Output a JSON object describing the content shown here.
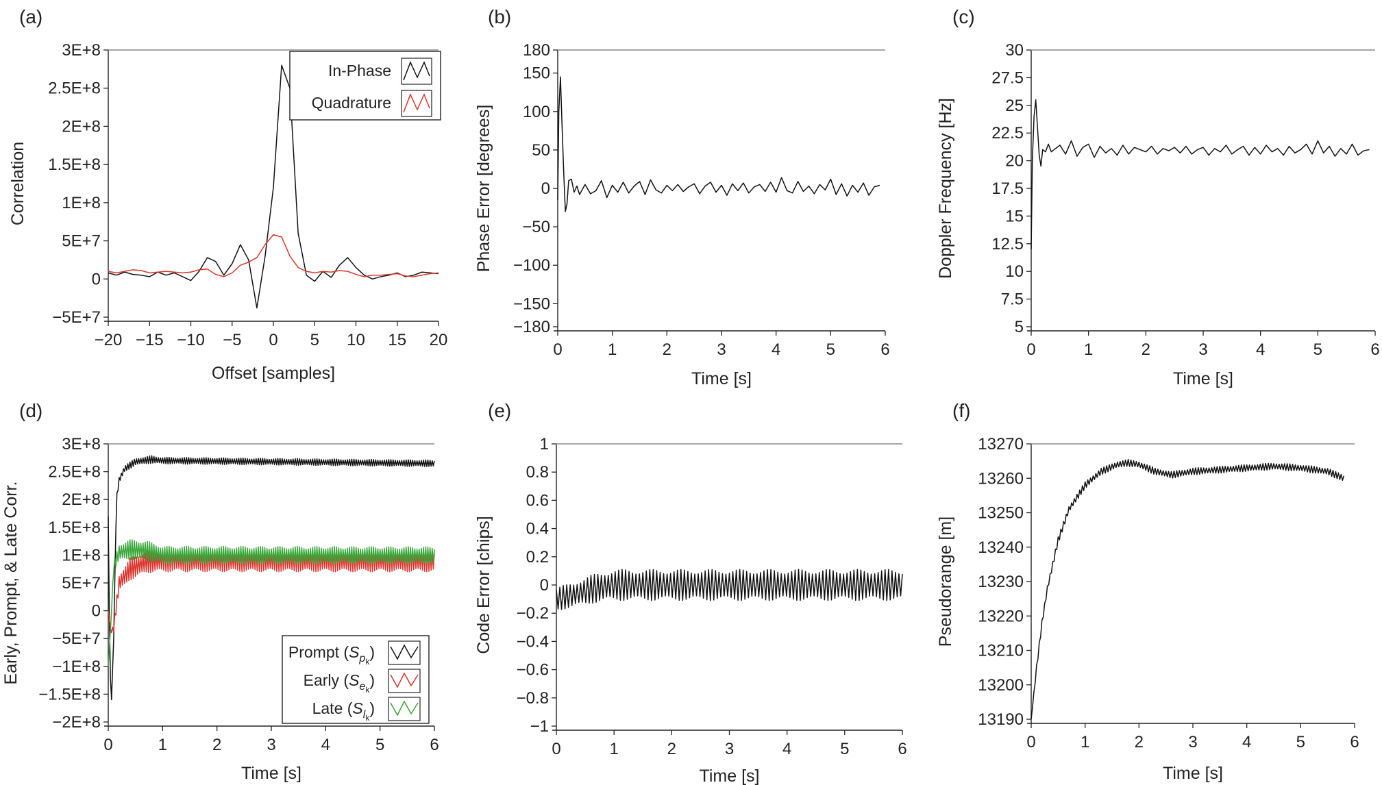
{
  "colors": {
    "black": "#111111",
    "red": "#d9342b",
    "green": "#3aa63a",
    "frame": "#888888"
  },
  "chart_data": [
    {
      "id": "a",
      "panel_label": "(a)",
      "type": "line",
      "xlabel": "Offset [samples]",
      "ylabel": "Correlation",
      "xlim": [
        -20,
        20
      ],
      "ylim": [
        -50000000,
        300000000
      ],
      "xticks": [
        -20,
        -15,
        -10,
        -5,
        0,
        5,
        10,
        15,
        20
      ],
      "xtick_labels": [
        "−20",
        "−15",
        "−10",
        "−5",
        "0",
        "5",
        "10",
        "15",
        "20"
      ],
      "yticks": [
        -50000000,
        0,
        50000000,
        100000000,
        150000000,
        200000000,
        250000000,
        300000000
      ],
      "ytick_labels": [
        "−5E+7",
        "0",
        "5E+7",
        "1E+8",
        "1.5E+8",
        "2E+8",
        "2.5E+8",
        "3E+8"
      ],
      "legend": {
        "position": "top-right",
        "entries": [
          "In-Phase",
          "Quadrature"
        ]
      },
      "series": [
        {
          "name": "In-Phase",
          "color": "#111111",
          "x": [
            -20,
            -19,
            -18,
            -17,
            -16,
            -15,
            -14,
            -13,
            -12,
            -11,
            -10,
            -9,
            -8,
            -7,
            -6,
            -5,
            -4,
            -3,
            -2,
            -1,
            0,
            1,
            2,
            3,
            4,
            5,
            6,
            7,
            8,
            9,
            10,
            11,
            12,
            13,
            14,
            15,
            16,
            17,
            18,
            19,
            20
          ],
          "y": [
            8000000,
            5000000,
            9000000,
            6000000,
            5000000,
            3000000,
            9000000,
            5000000,
            8000000,
            3000000,
            -2000000,
            10000000,
            28000000,
            23000000,
            5000000,
            20000000,
            45000000,
            25000000,
            -38000000,
            30000000,
            120000000,
            280000000,
            250000000,
            60000000,
            5000000,
            -3000000,
            10000000,
            2000000,
            18000000,
            28000000,
            15000000,
            5000000,
            0,
            3000000,
            5000000,
            8000000,
            3000000,
            5000000,
            9000000,
            8000000,
            7000000
          ]
        },
        {
          "name": "Quadrature",
          "color": "#d9342b",
          "x": [
            -20,
            -19,
            -18,
            -17,
            -16,
            -15,
            -14,
            -13,
            -12,
            -11,
            -10,
            -9,
            -8,
            -7,
            -6,
            -5,
            -4,
            -3,
            -2,
            -1,
            0,
            1,
            2,
            3,
            4,
            5,
            6,
            7,
            8,
            9,
            10,
            11,
            12,
            13,
            14,
            15,
            16,
            17,
            18,
            19,
            20
          ],
          "y": [
            10000000,
            8000000,
            10000000,
            12000000,
            11000000,
            8000000,
            9000000,
            10000000,
            9000000,
            8000000,
            9000000,
            12000000,
            13000000,
            6000000,
            3000000,
            8000000,
            18000000,
            22000000,
            28000000,
            45000000,
            58000000,
            55000000,
            30000000,
            15000000,
            10000000,
            8000000,
            10000000,
            9000000,
            11000000,
            10000000,
            6000000,
            3000000,
            5000000,
            5000000,
            6000000,
            7000000,
            4000000,
            3000000,
            5000000,
            7000000,
            8000000
          ]
        }
      ]
    },
    {
      "id": "b",
      "panel_label": "(b)",
      "type": "line",
      "xlabel": "Time [s]",
      "ylabel": "Phase Error [degrees]",
      "xlim": [
        0,
        6
      ],
      "ylim": [
        -180,
        180
      ],
      "xticks": [
        0,
        1,
        2,
        3,
        4,
        5,
        6
      ],
      "xtick_labels": [
        "0",
        "1",
        "2",
        "3",
        "4",
        "5",
        "6"
      ],
      "yticks": [
        -180,
        -150,
        -100,
        -50,
        0,
        50,
        100,
        150,
        180
      ],
      "ytick_labels": [
        "−180",
        "−150",
        "−100",
        "−50",
        "0",
        "50",
        "100",
        "150",
        "180"
      ],
      "series": [
        {
          "name": "",
          "color": "#111111",
          "x": [
            0,
            0.02,
            0.05,
            0.08,
            0.11,
            0.14,
            0.17,
            0.2,
            0.25,
            0.3,
            0.35,
            0.4,
            0.5,
            0.6,
            0.7,
            0.8,
            0.9,
            1.0,
            1.1,
            1.2,
            1.3,
            1.4,
            1.5,
            1.6,
            1.7,
            1.8,
            1.9,
            2.0,
            2.1,
            2.2,
            2.3,
            2.4,
            2.5,
            2.6,
            2.7,
            2.8,
            2.9,
            3.0,
            3.1,
            3.2,
            3.3,
            3.4,
            3.5,
            3.6,
            3.7,
            3.8,
            3.9,
            4.0,
            4.1,
            4.2,
            4.3,
            4.4,
            4.5,
            4.6,
            4.7,
            4.8,
            4.9,
            5.0,
            5.1,
            5.2,
            5.3,
            5.4,
            5.5,
            5.6,
            5.7,
            5.8,
            5.9
          ],
          "y": [
            -15,
            100,
            145,
            80,
            20,
            -30,
            -20,
            10,
            12,
            -5,
            3,
            -8,
            5,
            -7,
            -3,
            10,
            -12,
            4,
            -5,
            8,
            -6,
            3,
            9,
            -8,
            11,
            -2,
            -6,
            4,
            -3,
            5,
            -4,
            2,
            6,
            -7,
            3,
            8,
            -5,
            4,
            -9,
            6,
            -3,
            7,
            -6,
            2,
            5,
            -4,
            8,
            -5,
            14,
            -3,
            -6,
            9,
            -4,
            3,
            -7,
            5,
            -2,
            12,
            -8,
            6,
            -10,
            4,
            -5,
            7,
            -9,
            2,
            4
          ]
        }
      ]
    },
    {
      "id": "c",
      "panel_label": "(c)",
      "type": "line",
      "xlabel": "Time [s]",
      "ylabel": "Doppler Frequency [Hz]",
      "xlim": [
        0,
        6
      ],
      "ylim": [
        5,
        30
      ],
      "xticks": [
        0,
        1,
        2,
        3,
        4,
        5,
        6
      ],
      "xtick_labels": [
        "0",
        "1",
        "2",
        "3",
        "4",
        "5",
        "6"
      ],
      "yticks": [
        5,
        7.5,
        10,
        12.5,
        15,
        17.5,
        20,
        22.5,
        25,
        27.5,
        30
      ],
      "ytick_labels": [
        "5",
        "7.5",
        "10",
        "12.5",
        "15",
        "17.5",
        "20",
        "22.5",
        "25",
        "27.5",
        "30"
      ],
      "series": [
        {
          "name": "",
          "color": "#111111",
          "x": [
            0,
            0.02,
            0.05,
            0.08,
            0.11,
            0.14,
            0.17,
            0.2,
            0.25,
            0.3,
            0.35,
            0.4,
            0.5,
            0.6,
            0.7,
            0.8,
            0.9,
            1.0,
            1.1,
            1.2,
            1.3,
            1.4,
            1.5,
            1.6,
            1.7,
            1.8,
            1.9,
            2.0,
            2.1,
            2.2,
            2.3,
            2.4,
            2.5,
            2.6,
            2.7,
            2.8,
            2.9,
            3.0,
            3.1,
            3.2,
            3.3,
            3.4,
            3.5,
            3.6,
            3.7,
            3.8,
            3.9,
            4.0,
            4.1,
            4.2,
            4.3,
            4.4,
            4.5,
            4.6,
            4.7,
            4.8,
            4.9,
            5.0,
            5.1,
            5.2,
            5.3,
            5.4,
            5.5,
            5.6,
            5.7,
            5.8,
            5.9
          ],
          "y": [
            12,
            20,
            24,
            25.5,
            23,
            20.5,
            19.5,
            21,
            20.8,
            21.5,
            20.8,
            21,
            21.4,
            20.6,
            21.8,
            20.4,
            21.2,
            21.5,
            20.3,
            21.3,
            20.7,
            21.1,
            20.5,
            21.4,
            20.6,
            21.2,
            21.0,
            20.8,
            21.3,
            20.6,
            21.1,
            20.9,
            21.2,
            20.7,
            21.3,
            20.6,
            21.0,
            21.2,
            20.5,
            21.1,
            20.8,
            21.4,
            20.6,
            21.0,
            21.3,
            20.5,
            21.2,
            20.6,
            21.4,
            20.8,
            21.1,
            20.5,
            21.3,
            20.7,
            21.0,
            21.5,
            20.6,
            21.8,
            20.7,
            21.3,
            20.4,
            21.1,
            20.6,
            21.5,
            20.5,
            20.9,
            21.0
          ]
        }
      ]
    },
    {
      "id": "d",
      "panel_label": "(d)",
      "type": "line",
      "xlabel": "Time [s]",
      "ylabel": "Early, Prompt, & Late Corr.",
      "xlim": [
        0,
        6
      ],
      "ylim": [
        -200000000,
        300000000
      ],
      "xticks": [
        0,
        1,
        2,
        3,
        4,
        5,
        6
      ],
      "xtick_labels": [
        "0",
        "1",
        "2",
        "3",
        "4",
        "5",
        "6"
      ],
      "yticks": [
        -200000000,
        -150000000,
        -100000000,
        -50000000,
        0,
        50000000,
        100000000,
        150000000,
        200000000,
        250000000,
        300000000
      ],
      "ytick_labels": [
        "−2E+8",
        "−1.5E+8",
        "−1E+8",
        "−5E+7",
        "0",
        "5E+7",
        "1E+8",
        "1.5E+8",
        "2E+8",
        "2.5E+8",
        "3E+8"
      ],
      "legend": {
        "position": "bottom-right",
        "entries": [
          {
            "name": "Prompt",
            "symbol": "S",
            "sub": "p",
            "subsub": "k"
          },
          {
            "name": "Early",
            "symbol": "S",
            "sub": "e",
            "subsub": "k"
          },
          {
            "name": "Late",
            "symbol": "S",
            "sub": "l",
            "subsub": "k"
          }
        ]
      },
      "series": [
        {
          "name": "Prompt",
          "color": "#111111",
          "envelope": {
            "x": [
              0,
              0.03,
              0.06,
              0.1,
              0.15,
              0.2,
              0.3,
              0.5,
              0.8,
              1.0,
              6.0
            ],
            "center": [
              170000000,
              -100000000,
              -160000000,
              -50000000,
              200000000,
              235000000,
              255000000,
              268000000,
              272000000,
              270000000,
              265000000
            ],
            "amplitude": [
              0,
              0,
              0,
              0,
              6000000,
              6000000,
              6000000,
              6000000,
              7000000,
              6000000,
              6000000
            ]
          }
        },
        {
          "name": "Early",
          "color": "#d9342b",
          "envelope": {
            "x": [
              0,
              0.05,
              0.1,
              0.2,
              0.4,
              0.7,
              1.0,
              6.0
            ],
            "center": [
              0,
              -40000000,
              -30000000,
              50000000,
              75000000,
              88000000,
              90000000,
              90000000
            ],
            "amplitude": [
              0,
              0,
              8000000,
              15000000,
              20000000,
              20000000,
              20000000,
              20000000
            ]
          }
        },
        {
          "name": "Late",
          "color": "#3aa63a",
          "envelope": {
            "x": [
              0,
              0.05,
              0.1,
              0.2,
              0.4,
              0.7,
              1.0,
              6.0
            ],
            "center": [
              -100000000,
              -20000000,
              80000000,
              105000000,
              110000000,
              108000000,
              100000000,
              100000000
            ],
            "amplitude": [
              0,
              0,
              10000000,
              15000000,
              18000000,
              18000000,
              16000000,
              15000000
            ]
          }
        }
      ]
    },
    {
      "id": "e",
      "panel_label": "(e)",
      "type": "line",
      "xlabel": "Time [s]",
      "ylabel": "Code Error [chips]",
      "xlim": [
        0,
        6
      ],
      "ylim": [
        -1,
        1
      ],
      "xticks": [
        0,
        1,
        2,
        3,
        4,
        5,
        6
      ],
      "xtick_labels": [
        "0",
        "1",
        "2",
        "3",
        "4",
        "5",
        "6"
      ],
      "yticks": [
        -1,
        -0.8,
        -0.6,
        -0.4,
        -0.2,
        0,
        0.2,
        0.4,
        0.6,
        0.8,
        1
      ],
      "ytick_labels": [
        "−1",
        "−0.8",
        "−0.6",
        "−0.4",
        "−0.2",
        "0",
        "0.2",
        "0.4",
        "0.6",
        "0.8",
        "1"
      ],
      "series": [
        {
          "name": "",
          "color": "#111111",
          "envelope": {
            "x": [
              0,
              0.3,
              0.6,
              1.0,
              2.0,
              6.0
            ],
            "center": [
              -0.1,
              -0.07,
              -0.03,
              0.0,
              0.0,
              0.0
            ],
            "amplitude": [
              0.08,
              0.09,
              0.1,
              0.11,
              0.11,
              0.11
            ]
          }
        }
      ]
    },
    {
      "id": "f",
      "panel_label": "(f)",
      "type": "line",
      "xlabel": "Time [s]",
      "ylabel": "Pseudorange [m]",
      "xlim": [
        0,
        6
      ],
      "ylim": [
        13190,
        13270
      ],
      "xticks": [
        0,
        1,
        2,
        3,
        4,
        5,
        6
      ],
      "xtick_labels": [
        "0",
        "1",
        "2",
        "3",
        "4",
        "5",
        "6"
      ],
      "yticks": [
        13190,
        13200,
        13210,
        13220,
        13230,
        13240,
        13250,
        13260,
        13270
      ],
      "ytick_labels": [
        "13190",
        "13200",
        "13210",
        "13220",
        "13230",
        "13240",
        "13250",
        "13260",
        "13270"
      ],
      "series": [
        {
          "name": "",
          "color": "#111111",
          "envelope": {
            "x": [
              0,
              0.1,
              0.2,
              0.3,
              0.5,
              0.7,
              1.0,
              1.3,
              1.6,
              1.8,
              2.0,
              2.3,
              2.6,
              3.0,
              3.5,
              4.0,
              4.5,
              5.0,
              5.5,
              5.8
            ],
            "center": [
              13190,
              13205,
              13218,
              13228,
              13242,
              13251,
              13258,
              13262,
              13264,
              13264.5,
              13264,
              13262,
              13261,
              13262,
              13262.5,
              13263,
              13263.5,
              13263,
              13262,
              13260
            ],
            "amplitude": [
              0,
              0.8,
              0.9,
              1,
              1,
              1,
              1,
              1,
              1,
              1,
              1,
              1,
              1,
              1,
              1,
              1,
              1,
              1,
              1,
              1
            ]
          }
        }
      ]
    }
  ]
}
